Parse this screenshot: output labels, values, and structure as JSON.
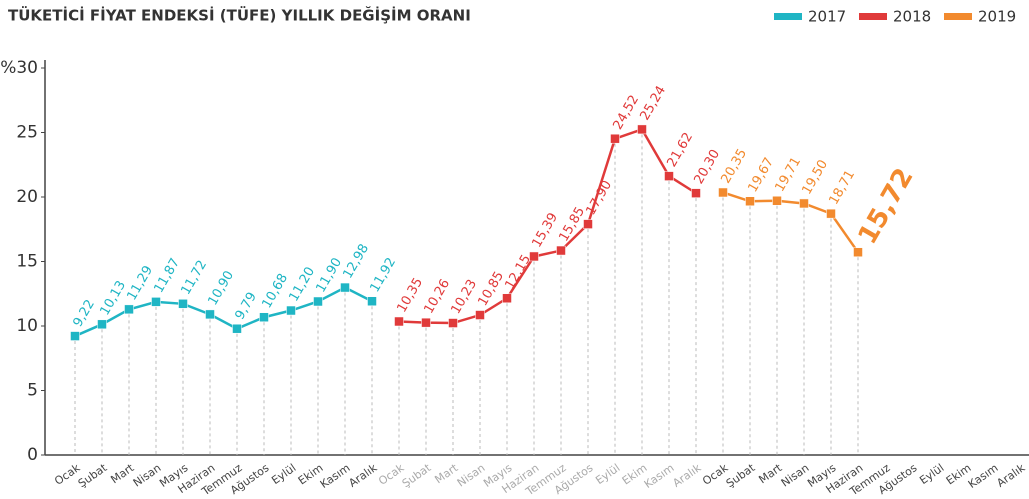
{
  "chart_data": {
    "type": "line",
    "title": "TÜKETİCİ FİYAT ENDEKSİ (TÜFE) YILLIK DEĞİŞİM ORANI",
    "categories": [
      "Ocak",
      "Şubat",
      "Mart",
      "Nisan",
      "Mayıs",
      "Haziran",
      "Temmuz",
      "Ağustos",
      "Eylül",
      "Ekim",
      "Kasım",
      "Aralık",
      "Ocak",
      "Şubat",
      "Mart",
      "Nisan",
      "Mayıs",
      "Haziran",
      "Temmuz",
      "Ağustos",
      "Eylül",
      "Ekim",
      "Kasım",
      "Aralık",
      "Ocak",
      "Şubat",
      "Mart",
      "Nisan",
      "Mayıs",
      "Haziran",
      "Temmuz",
      "Ağustos",
      "Eylül",
      "Ekim",
      "Kasım",
      "Aralık"
    ],
    "series": [
      {
        "name": "2017",
        "color": "#1fb5c4",
        "values": [
          9.22,
          10.13,
          11.29,
          11.87,
          11.72,
          10.9,
          9.79,
          10.68,
          11.2,
          11.9,
          12.98,
          11.92,
          null,
          null,
          null,
          null,
          null,
          null,
          null,
          null,
          null,
          null,
          null,
          null,
          null,
          null,
          null,
          null,
          null,
          null,
          null,
          null,
          null,
          null,
          null,
          null
        ],
        "value_labels": [
          "9,22",
          "10,13",
          "11,29",
          "11,87",
          "11,72",
          "10,90",
          "9,79",
          "10,68",
          "11,20",
          "11,90",
          "12,98",
          "11,92",
          null,
          null,
          null,
          null,
          null,
          null,
          null,
          null,
          null,
          null,
          null,
          null,
          null,
          null,
          null,
          null,
          null,
          null,
          null,
          null,
          null,
          null,
          null,
          null
        ]
      },
      {
        "name": "2018",
        "color": "#e03a3a",
        "values": [
          null,
          null,
          null,
          null,
          null,
          null,
          null,
          null,
          null,
          null,
          null,
          null,
          10.35,
          10.26,
          10.23,
          10.85,
          12.15,
          15.39,
          15.85,
          17.9,
          24.52,
          25.24,
          21.62,
          20.3,
          null,
          null,
          null,
          null,
          null,
          null,
          null,
          null,
          null,
          null,
          null,
          null
        ],
        "value_labels": [
          null,
          null,
          null,
          null,
          null,
          null,
          null,
          null,
          null,
          null,
          null,
          null,
          "10,35",
          "10,26",
          "10,23",
          "10,85",
          "12,15",
          "15,39",
          "15,85",
          "17,90",
          "24,52",
          "25,24",
          "21,62",
          "20,30",
          null,
          null,
          null,
          null,
          null,
          null,
          null,
          null,
          null,
          null,
          null,
          null
        ]
      },
      {
        "name": "2019",
        "color": "#f28a2e",
        "values": [
          null,
          null,
          null,
          null,
          null,
          null,
          null,
          null,
          null,
          null,
          null,
          null,
          null,
          null,
          null,
          null,
          null,
          null,
          null,
          null,
          null,
          null,
          null,
          null,
          20.35,
          19.67,
          19.71,
          19.5,
          18.71,
          15.72,
          null,
          null,
          null,
          null,
          null,
          null
        ],
        "value_labels": [
          null,
          null,
          null,
          null,
          null,
          null,
          null,
          null,
          null,
          null,
          null,
          null,
          null,
          null,
          null,
          null,
          null,
          null,
          null,
          null,
          null,
          null,
          null,
          null,
          "20,35",
          "19,67",
          "19,71",
          "19,50",
          "18,71",
          "15,72",
          null,
          null,
          null,
          null,
          null,
          null
        ]
      }
    ],
    "ylim": [
      0,
      30
    ],
    "yticks": [
      0,
      5,
      10,
      15,
      20,
      25,
      {
        "value": 30,
        "label": "%30"
      }
    ],
    "legend": "top-right"
  }
}
